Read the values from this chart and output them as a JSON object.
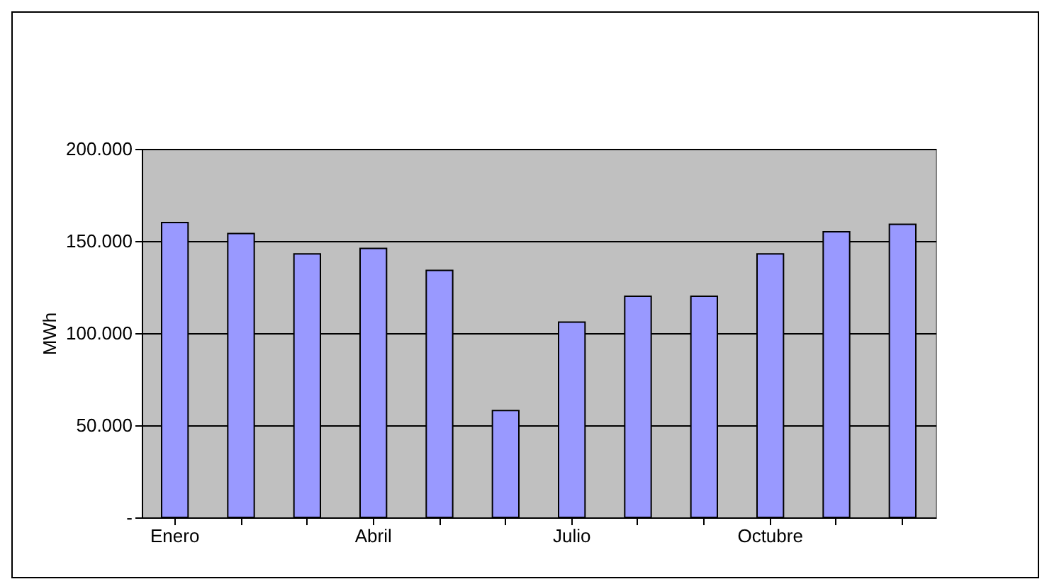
{
  "chart_data": {
    "type": "bar",
    "ylabel": "MWh",
    "categories": [
      "Enero",
      null,
      null,
      "Abril",
      null,
      null,
      "Julio",
      null,
      null,
      "Octubre",
      null,
      null
    ],
    "values": [
      160000,
      154000,
      143000,
      146000,
      134000,
      58000,
      106000,
      120000,
      120000,
      143000,
      155000,
      159000
    ],
    "color": "#9999ff",
    "ylim": [
      0,
      200000
    ],
    "yticks": [
      {
        "value": 0,
        "label": "-"
      },
      {
        "value": 50000,
        "label": "50.000"
      },
      {
        "value": 100000,
        "label": "100.000"
      },
      {
        "value": 150000,
        "label": "150.000"
      },
      {
        "value": 200000,
        "label": "200.000"
      }
    ],
    "grid": "y"
  }
}
